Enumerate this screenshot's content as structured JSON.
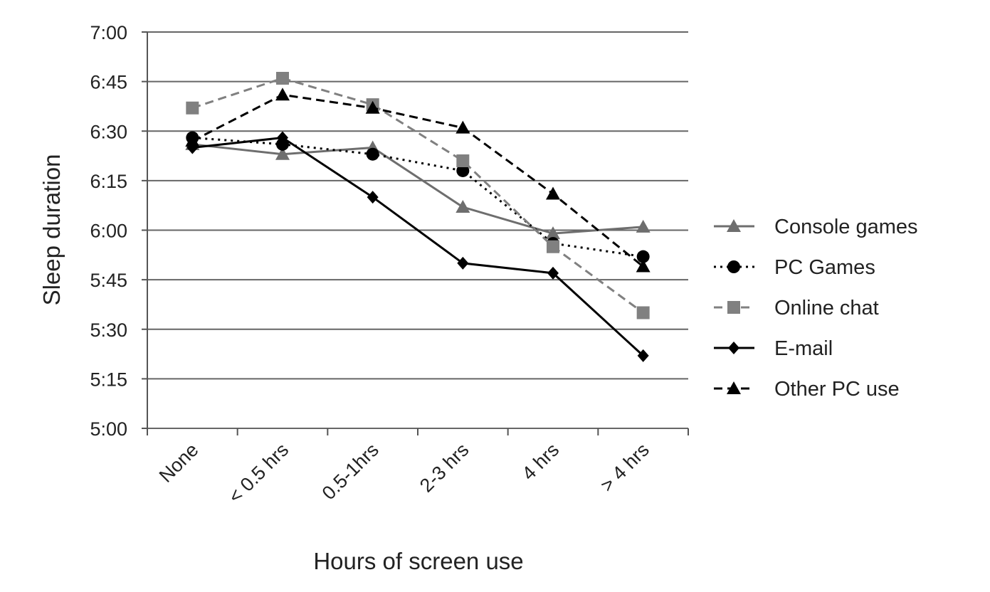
{
  "chart_data": {
    "type": "line",
    "x_label": "Hours of screen use",
    "y_label": "Sleep duration",
    "categories": [
      "None",
      "< 0.5 hrs",
      "0.5-1hrs",
      "2-3 hrs",
      "4 hrs",
      "> 4 hrs"
    ],
    "ylim": [
      300,
      420
    ],
    "yticks": [
      {
        "value": 300,
        "label": "5:00"
      },
      {
        "value": 315,
        "label": "5:15"
      },
      {
        "value": 330,
        "label": "5:30"
      },
      {
        "value": 345,
        "label": "5:45"
      },
      {
        "value": 360,
        "label": "6:00"
      },
      {
        "value": 375,
        "label": "6:15"
      },
      {
        "value": 390,
        "label": "6:30"
      },
      {
        "value": 405,
        "label": "6:45"
      },
      {
        "value": 420,
        "label": "7:00"
      }
    ],
    "grid": true,
    "legend": "right",
    "series": [
      {
        "name": "Console games",
        "color": "#6e6e6e",
        "dash": "solid",
        "marker": "triangle",
        "values": [
          386,
          383,
          385,
          367,
          359,
          361
        ]
      },
      {
        "name": "PC Games",
        "color": "#000000",
        "dash": "dotted",
        "marker": "circle",
        "values": [
          388,
          386,
          383,
          378,
          356,
          352
        ]
      },
      {
        "name": "Online chat",
        "color": "#808080",
        "dash": "dashed",
        "marker": "square",
        "values": [
          397,
          406,
          398,
          381,
          355,
          335
        ]
      },
      {
        "name": "E-mail",
        "color": "#000000",
        "dash": "solid",
        "marker": "diamond",
        "values": [
          385,
          388,
          370,
          350,
          347,
          322
        ]
      },
      {
        "name": "Other PC use",
        "color": "#000000",
        "dash": "dashed",
        "marker": "triangle",
        "values": [
          387,
          401,
          397,
          391,
          371,
          349
        ]
      }
    ]
  }
}
